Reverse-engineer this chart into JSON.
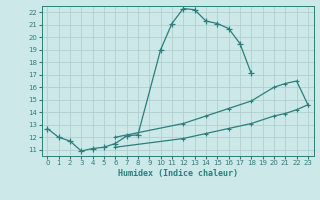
{
  "xlabel": "Humidex (Indice chaleur)",
  "background_color": "#cde8e8",
  "grid_color": "#b0d0d0",
  "line_color": "#2e7d7d",
  "xlim": [
    -0.5,
    23.5
  ],
  "ylim": [
    10.5,
    22.5
  ],
  "xticks": [
    0,
    1,
    2,
    3,
    4,
    5,
    6,
    7,
    8,
    9,
    10,
    11,
    12,
    13,
    14,
    15,
    16,
    17,
    18,
    19,
    20,
    21,
    22,
    23
  ],
  "yticks": [
    11,
    12,
    13,
    14,
    15,
    16,
    17,
    18,
    19,
    20,
    21,
    22
  ],
  "main_x": [
    0,
    1,
    2,
    3,
    4,
    5,
    6,
    7,
    8,
    10,
    11,
    12,
    13,
    14,
    15,
    16,
    17,
    18
  ],
  "main_y": [
    12.7,
    12.0,
    11.7,
    10.9,
    11.1,
    11.2,
    11.5,
    12.1,
    12.2,
    19.0,
    21.1,
    22.3,
    22.2,
    21.3,
    21.1,
    20.7,
    19.5,
    17.1
  ],
  "line_upper_x": [
    6,
    12,
    14,
    16,
    18,
    20,
    21,
    22,
    23
  ],
  "line_upper_y": [
    12.0,
    13.1,
    13.7,
    14.3,
    14.9,
    16.0,
    16.3,
    16.5,
    14.6
  ],
  "line_lower_x": [
    6,
    12,
    14,
    16,
    18,
    20,
    21,
    22,
    23
  ],
  "line_lower_y": [
    11.2,
    11.9,
    12.3,
    12.7,
    13.1,
    13.7,
    13.9,
    14.2,
    14.6
  ]
}
